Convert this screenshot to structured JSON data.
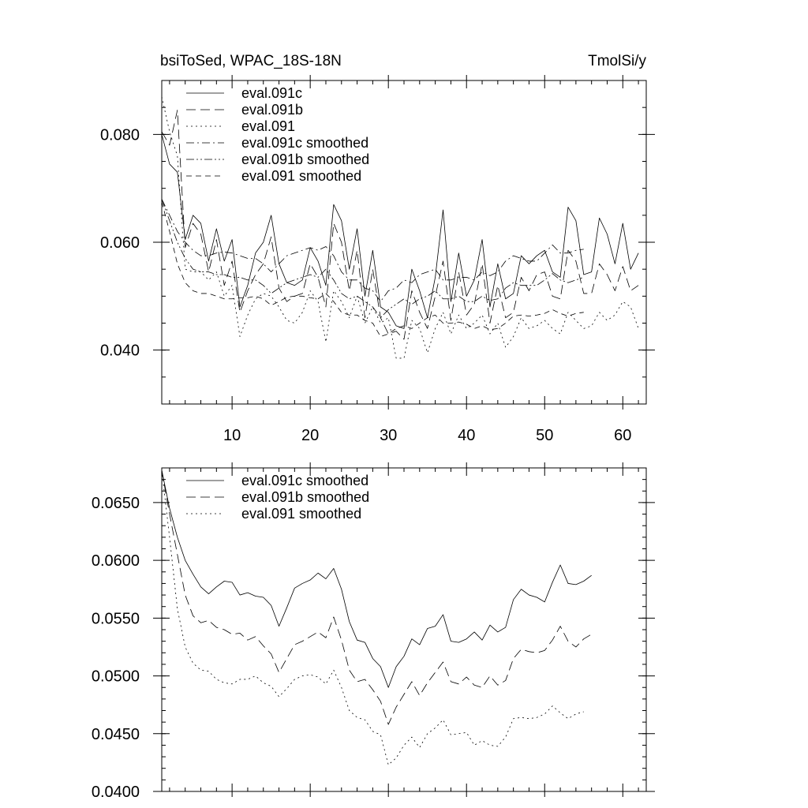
{
  "chart_data": [
    {
      "type": "line",
      "title_left": "bsiToSed, WPAC_18S-18N",
      "title_right": "TmolSi/y",
      "xlim": [
        1,
        63
      ],
      "ylim": [
        0.03,
        0.09
      ],
      "x_ticks": [
        10,
        20,
        30,
        40,
        50,
        60
      ],
      "x_tick_labels": [
        "10",
        "20",
        "30",
        "40",
        "50",
        "60"
      ],
      "y_ticks": [
        0.04,
        0.06,
        0.08
      ],
      "y_tick_labels": [
        "0.040",
        "0.060",
        "0.080"
      ],
      "series": [
        {
          "name": "eval.091c",
          "dash": "solid",
          "values": [
            0.08,
            0.0745,
            0.073,
            0.0605,
            0.065,
            0.0635,
            0.0565,
            0.0625,
            0.0565,
            0.0605,
            0.048,
            0.052,
            0.058,
            0.06,
            0.065,
            0.056,
            0.0525,
            0.052,
            0.053,
            0.059,
            0.0565,
            0.052,
            0.067,
            0.064,
            0.055,
            0.0625,
            0.05,
            0.0585,
            0.048,
            0.047,
            0.0445,
            0.044,
            0.055,
            0.051,
            0.046,
            0.0535,
            0.066,
            0.049,
            0.058,
            0.05,
            0.053,
            0.0605,
            0.048,
            0.056,
            0.0495,
            0.0505,
            0.0575,
            0.056,
            0.0575,
            0.0585,
            0.0545,
            0.0535,
            0.0665,
            0.064,
            0.054,
            0.0545,
            0.0645,
            0.0615,
            0.056,
            0.0635,
            0.055,
            0.058
          ]
        },
        {
          "name": "eval.091b",
          "dash": "long-dash",
          "values": [
            0.0805,
            0.078,
            0.0845,
            0.059,
            0.0635,
            0.0615,
            0.0545,
            0.0605,
            0.052,
            0.0565,
            0.047,
            0.051,
            0.054,
            0.056,
            0.061,
            0.0515,
            0.049,
            0.05,
            0.0505,
            0.056,
            0.0535,
            0.048,
            0.0635,
            0.06,
            0.051,
            0.0585,
            0.046,
            0.055,
            0.046,
            0.043,
            0.0435,
            0.042,
            0.051,
            0.047,
            0.044,
            0.05,
            0.0565,
            0.0455,
            0.0545,
            0.0465,
            0.0485,
            0.056,
            0.045,
            0.052,
            0.046,
            0.047,
            0.0535,
            0.051,
            0.054,
            0.0545,
            0.05,
            0.0495,
            0.0585,
            0.0565,
            0.0505,
            0.0505,
            0.056,
            0.054,
            0.051,
            0.0555,
            0.051,
            0.052
          ]
        },
        {
          "name": "eval.091",
          "dash": "dot",
          "values": [
            0.087,
            0.0805,
            0.076,
            0.055,
            0.0545,
            0.0545,
            0.053,
            0.0545,
            0.05,
            0.052,
            0.0425,
            0.0465,
            0.0495,
            0.0505,
            0.05,
            0.048,
            0.0455,
            0.045,
            0.047,
            0.051,
            0.049,
            0.0415,
            0.051,
            0.049,
            0.046,
            0.05,
            0.045,
            0.048,
            0.045,
            0.046,
            0.0385,
            0.0385,
            0.0455,
            0.044,
            0.0395,
            0.044,
            0.047,
            0.043,
            0.0465,
            0.044,
            0.045,
            0.0465,
            0.043,
            0.045,
            0.0405,
            0.0425,
            0.046,
            0.044,
            0.0445,
            0.0455,
            0.044,
            0.043,
            0.047,
            0.0455,
            0.044,
            0.0445,
            0.047,
            0.0455,
            0.0465,
            0.049,
            0.048,
            0.044
          ]
        },
        {
          "name": "eval.091c smoothed",
          "dash": "dash-dot",
          "values": [
            0.068,
            0.065,
            0.062,
            0.06,
            0.0585,
            0.0575,
            0.0575,
            0.058,
            0.0582,
            0.058,
            0.0575,
            0.057,
            0.057,
            0.056,
            0.0545,
            0.056,
            0.0575,
            0.058,
            0.0585,
            0.059,
            0.0585,
            0.0592,
            0.0575,
            0.0545,
            0.053,
            0.053,
            0.0515,
            0.051,
            0.049,
            0.051,
            0.0515,
            0.053,
            0.0525,
            0.054,
            0.0545,
            0.055,
            0.053,
            0.053,
            0.0535,
            0.0535,
            0.053,
            0.0545,
            0.0538,
            0.0545,
            0.0565,
            0.0575,
            0.057,
            0.0565,
            0.0565,
            0.058,
            0.0595,
            0.058,
            0.058,
            0.0585,
            0.0587
          ]
        },
        {
          "name": "eval.091b smoothed",
          "dash": "dash-dot-dot",
          "values": [
            0.068,
            0.064,
            0.06,
            0.057,
            0.055,
            0.0545,
            0.0545,
            0.054,
            0.054,
            0.0535,
            0.0535,
            0.053,
            0.053,
            0.052,
            0.0505,
            0.0515,
            0.0525,
            0.053,
            0.0535,
            0.054,
            0.0535,
            0.055,
            0.053,
            0.0505,
            0.0495,
            0.05,
            0.049,
            0.048,
            0.046,
            0.0475,
            0.0485,
            0.0495,
            0.0485,
            0.0495,
            0.05,
            0.051,
            0.0495,
            0.0495,
            0.05,
            0.049,
            0.049,
            0.05,
            0.0492,
            0.0495,
            0.0515,
            0.0525,
            0.052,
            0.052,
            0.052,
            0.053,
            0.0542,
            0.053,
            0.0525,
            0.053,
            0.0535
          ]
        },
        {
          "name": "eval.091 smoothed",
          "dash": "medium-dash",
          "values": [
            0.0675,
            0.062,
            0.056,
            0.0525,
            0.051,
            0.0505,
            0.0505,
            0.05,
            0.0495,
            0.0495,
            0.0497,
            0.0497,
            0.05,
            0.0495,
            0.0483,
            0.049,
            0.0498,
            0.05,
            0.05,
            0.0497,
            0.0495,
            0.0505,
            0.049,
            0.047,
            0.0465,
            0.0465,
            0.0455,
            0.045,
            0.0425,
            0.043,
            0.044,
            0.0445,
            0.044,
            0.045,
            0.046,
            0.0465,
            0.045,
            0.045,
            0.0452,
            0.0448,
            0.044,
            0.0445,
            0.0438,
            0.044,
            0.045,
            0.0463,
            0.0465,
            0.0463,
            0.0465,
            0.0468,
            0.0475,
            0.0468,
            0.0463,
            0.0468,
            0.047
          ]
        }
      ]
    },
    {
      "type": "line",
      "xlim": [
        1,
        63
      ],
      "ylim": [
        0.04,
        0.068
      ],
      "x_ticks": [
        10,
        20,
        30,
        40,
        50,
        60
      ],
      "y_ticks": [
        0.04,
        0.045,
        0.05,
        0.055,
        0.06,
        0.065
      ],
      "y_tick_labels": [
        "0.0400",
        "0.0450",
        "0.0500",
        "0.0550",
        "0.0600",
        "0.0650"
      ],
      "series": [
        {
          "name": "eval.091c smoothed",
          "dash": "solid",
          "values": [
            0.0678,
            0.0645,
            0.062,
            0.06,
            0.0588,
            0.0577,
            0.0571,
            0.0577,
            0.0582,
            0.0581,
            0.057,
            0.0572,
            0.0569,
            0.0568,
            0.0561,
            0.0543,
            0.0559,
            0.0576,
            0.058,
            0.0583,
            0.0589,
            0.0584,
            0.0593,
            0.0575,
            0.0547,
            0.0531,
            0.0529,
            0.0515,
            0.0508,
            0.049,
            0.0508,
            0.0517,
            0.0532,
            0.0527,
            0.0541,
            0.0543,
            0.0553,
            0.053,
            0.0529,
            0.0532,
            0.0538,
            0.0531,
            0.0544,
            0.0538,
            0.0542,
            0.0566,
            0.0575,
            0.057,
            0.0568,
            0.0564,
            0.0581,
            0.0596,
            0.058,
            0.0579,
            0.0582,
            0.0587
          ]
        },
        {
          "name": "eval.091b smoothed",
          "dash": "long-dash",
          "values": [
            0.0678,
            0.064,
            0.0605,
            0.057,
            0.0552,
            0.0546,
            0.0548,
            0.0542,
            0.054,
            0.0536,
            0.0537,
            0.0531,
            0.0534,
            0.0526,
            0.0519,
            0.0503,
            0.0515,
            0.0527,
            0.053,
            0.0534,
            0.0538,
            0.0533,
            0.0551,
            0.0531,
            0.0505,
            0.0495,
            0.0497,
            0.0488,
            0.0478,
            0.0458,
            0.0473,
            0.0484,
            0.0495,
            0.0483,
            0.0494,
            0.0503,
            0.0512,
            0.0495,
            0.0493,
            0.0499,
            0.0492,
            0.049,
            0.05,
            0.0492,
            0.0496,
            0.0515,
            0.0523,
            0.0521,
            0.052,
            0.0522,
            0.0531,
            0.0543,
            0.053,
            0.0525,
            0.0532,
            0.0536
          ]
        },
        {
          "name": "eval.091 smoothed",
          "dash": "dot",
          "values": [
            0.0678,
            0.062,
            0.0558,
            0.0525,
            0.0511,
            0.0505,
            0.0504,
            0.0497,
            0.0494,
            0.0493,
            0.0497,
            0.0497,
            0.05,
            0.0494,
            0.0491,
            0.0482,
            0.0489,
            0.0497,
            0.05,
            0.0501,
            0.0499,
            0.0493,
            0.0505,
            0.049,
            0.047,
            0.0464,
            0.0462,
            0.0452,
            0.0449,
            0.0423,
            0.0429,
            0.044,
            0.0447,
            0.0438,
            0.045,
            0.0455,
            0.0462,
            0.0449,
            0.045,
            0.0451,
            0.044,
            0.0444,
            0.044,
            0.0439,
            0.0447,
            0.0463,
            0.0464,
            0.0463,
            0.0464,
            0.0467,
            0.0474,
            0.0468,
            0.0463,
            0.0467,
            0.0469
          ]
        }
      ]
    }
  ]
}
